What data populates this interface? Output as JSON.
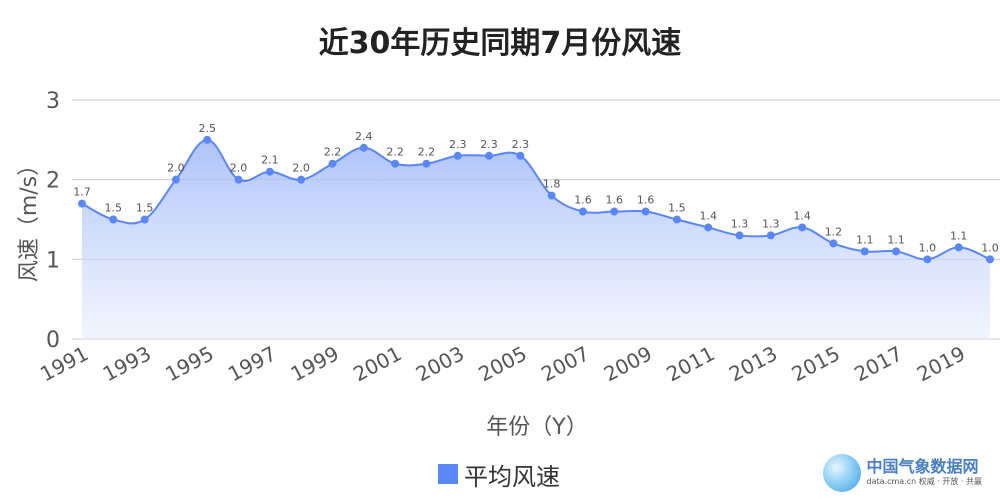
{
  "chart_data": {
    "type": "area",
    "title": "近30年历史同期7月份风速",
    "xlabel": "年份（Y）",
    "ylabel": "风速（m/s）",
    "x": [
      1991,
      1992,
      1993,
      1994,
      1995,
      1996,
      1997,
      1998,
      1999,
      2000,
      2001,
      2002,
      2003,
      2004,
      2005,
      2006,
      2007,
      2008,
      2009,
      2010,
      2011,
      2012,
      2013,
      2014,
      2015,
      2016,
      2017,
      2018,
      2019,
      2020
    ],
    "x_tick_labels": [
      "1991",
      "1993",
      "1995",
      "1997",
      "1999",
      "2001",
      "2003",
      "2005",
      "2007",
      "2009",
      "2011",
      "2013",
      "2015",
      "2017",
      "2019"
    ],
    "y_ticks": [
      "0",
      "1",
      "2",
      "3"
    ],
    "ylim": [
      0,
      3
    ],
    "grid": true,
    "legend_position": "bottom",
    "series": [
      {
        "name": "平均风速",
        "color": "#5b86f5",
        "values": [
          1.7,
          1.5,
          1.5,
          2.0,
          2.5,
          2.0,
          2.1,
          2.0,
          2.2,
          2.4,
          2.2,
          2.2,
          2.3,
          2.3,
          2.3,
          1.8,
          1.6,
          1.6,
          1.6,
          1.5,
          1.4,
          1.3,
          1.3,
          1.4,
          1.2,
          1.1,
          1.1,
          1.0,
          1.15,
          1.0
        ],
        "labels": [
          "1.7",
          "1.5",
          "1.5",
          "2.0",
          "2.5",
          "2.0",
          "2.1",
          "2.0",
          "2.2",
          "2.4",
          "2.2",
          "2.2",
          "2.3",
          "2.3",
          "2.3",
          "1.8",
          "1.6",
          "1.6",
          "1.6",
          "1.5",
          "1.4",
          "1.3",
          "1.3",
          "1.4",
          "1.2",
          "1.1",
          "1.1",
          "1.0",
          "1.1",
          "1.0"
        ]
      }
    ]
  },
  "brand": {
    "name": "中国气象数据网",
    "url": "data.cma.cn 权威 · 开放 · 共赢"
  }
}
